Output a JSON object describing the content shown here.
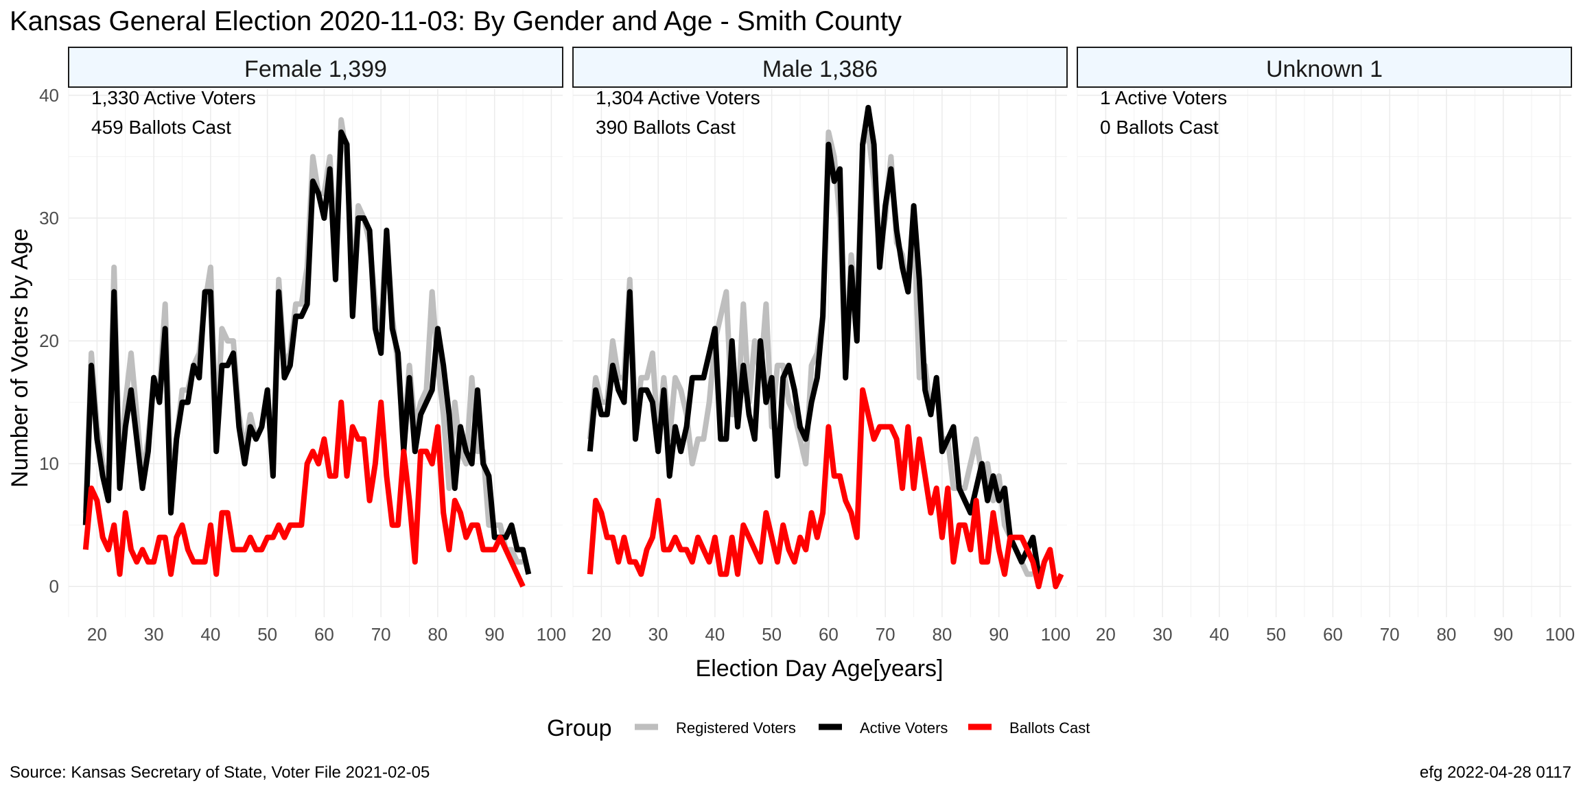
{
  "chart_data": {
    "type": "line",
    "title": "Kansas General Election 2020-11-03:  By Gender and Age - Smith County",
    "xlabel": "Election Day Age[years]",
    "ylabel": "Number of Voters by Age",
    "xlim": [
      15,
      102
    ],
    "ylim": [
      -2.5,
      40.5
    ],
    "x_ticks": [
      "20",
      "30",
      "40",
      "50",
      "60",
      "70",
      "80",
      "90",
      "100"
    ],
    "y_ticks": [
      "0",
      "10",
      "20",
      "30",
      "40"
    ],
    "grid": true,
    "legend": {
      "title": "Group",
      "position": "bottom",
      "entries": [
        {
          "name": "Registered Voters",
          "color": "#bebebe"
        },
        {
          "name": "Active Voters",
          "color": "#000000"
        },
        {
          "name": "Ballots Cast",
          "color": "#ff0000"
        }
      ]
    },
    "caption_left": "Source:  Kansas Secretary of State, Voter File  2021-02-05",
    "caption_right": "efg 2022-04-28 0117",
    "panels": [
      {
        "strip": "Female 1,399",
        "annotations": [
          "1,330 Active Voters",
          "459 Ballots Cast"
        ],
        "series": [
          {
            "name": "Registered Voters",
            "color": "#bebebe",
            "x_start": 18,
            "values": [
              6,
              19,
              13,
              10,
              8,
              26,
              9,
              15,
              19,
              14,
              9,
              12,
              17,
              16,
              23,
              8,
              12,
              16,
              16,
              18,
              19,
              23,
              26,
              12,
              21,
              20,
              20,
              14,
              11,
              14,
              12,
              13,
              16,
              10,
              25,
              18,
              19,
              23,
              23,
              26,
              35,
              32,
              32,
              35,
              27,
              38,
              35,
              24,
              31,
              30,
              28,
              23,
              21,
              29,
              22,
              18,
              12,
              18,
              13,
              15,
              16,
              24,
              18,
              14,
              8,
              15,
              11,
              10,
              17,
              11,
              11,
              5,
              5,
              5,
              3,
              3,
              2,
              2
            ]
          },
          {
            "name": "Active Voters",
            "color": "#000000",
            "x_start": 18,
            "values": [
              5,
              18,
              12,
              9,
              7,
              24,
              8,
              13,
              16,
              12,
              8,
              11,
              17,
              15,
              21,
              6,
              12,
              15,
              15,
              18,
              17,
              24,
              24,
              11,
              18,
              18,
              19,
              13,
              10,
              13,
              12,
              13,
              16,
              9,
              24,
              17,
              18,
              22,
              22,
              23,
              33,
              32,
              30,
              34,
              25,
              37,
              36,
              22,
              30,
              30,
              29,
              21,
              19,
              29,
              21,
              19,
              11,
              17,
              11,
              14,
              15,
              16,
              21,
              18,
              14,
              8,
              13,
              11,
              10,
              16,
              10,
              9,
              4,
              4,
              4,
              5,
              3,
              3,
              1
            ]
          },
          {
            "name": "Ballots Cast",
            "color": "#ff0000",
            "x_start": 18,
            "values": [
              3,
              8,
              7,
              4,
              3,
              5,
              1,
              6,
              3,
              2,
              3,
              2,
              2,
              4,
              4,
              1,
              4,
              5,
              3,
              2,
              2,
              2,
              5,
              1,
              6,
              6,
              3,
              3,
              3,
              4,
              3,
              3,
              4,
              4,
              5,
              4,
              5,
              5,
              5,
              10,
              11,
              10,
              12,
              9,
              9,
              15,
              9,
              13,
              12,
              12,
              7,
              10,
              15,
              9,
              5,
              5,
              11,
              7,
              2,
              11,
              11,
              10,
              13,
              6,
              3,
              7,
              6,
              4,
              5,
              5,
              3,
              3,
              3,
              4,
              3,
              2,
              1,
              0
            ]
          }
        ]
      },
      {
        "strip": "Male 1,386",
        "annotations": [
          "1,304 Active Voters",
          "390 Ballots Cast"
        ],
        "series": [
          {
            "name": "Registered Voters",
            "color": "#bebebe",
            "x_start": 18,
            "values": [
              12,
              17,
              15,
              15,
              20,
              17,
              17,
              25,
              13,
              17,
              17,
              19,
              12,
              17,
              12,
              17,
              16,
              14,
              10,
              12,
              12,
              15,
              20,
              22,
              24,
              14,
              14,
              23,
              15,
              20,
              17,
              23,
              13,
              18,
              18,
              15,
              14,
              12,
              10,
              18,
              19,
              22,
              37,
              35,
              30,
              18,
              27,
              22,
              36,
              37,
              33,
              27,
              30,
              35,
              28,
              27,
              24,
              30,
              17,
              18,
              14,
              17,
              12,
              12,
              8,
              8,
              8,
              10,
              12,
              9,
              10,
              7,
              9,
              5,
              4,
              3,
              2,
              1,
              1
            ]
          },
          {
            "name": "Active Voters",
            "color": "#000000",
            "x_start": 18,
            "values": [
              11,
              16,
              14,
              14,
              18,
              16,
              15,
              24,
              12,
              16,
              16,
              15,
              11,
              16,
              9,
              13,
              11,
              13,
              17,
              17,
              17,
              19,
              21,
              12,
              12,
              20,
              13,
              18,
              14,
              12,
              20,
              15,
              17,
              9,
              17,
              18,
              16,
              13,
              12,
              15,
              17,
              22,
              36,
              33,
              34,
              17,
              26,
              20,
              36,
              39,
              36,
              26,
              31,
              34,
              29,
              26,
              24,
              31,
              25,
              16,
              14,
              17,
              11,
              12,
              13,
              8,
              7,
              6,
              8,
              10,
              7,
              9,
              7,
              8,
              4,
              3,
              2,
              3,
              4,
              1
            ]
          },
          {
            "name": "Ballots Cast",
            "color": "#ff0000",
            "x_start": 18,
            "values": [
              1,
              7,
              6,
              4,
              4,
              2,
              4,
              2,
              2,
              1,
              3,
              4,
              7,
              3,
              3,
              4,
              3,
              3,
              2,
              4,
              3,
              2,
              4,
              1,
              1,
              4,
              1,
              5,
              4,
              3,
              2,
              6,
              4,
              2,
              5,
              3,
              2,
              4,
              3,
              6,
              4,
              6,
              13,
              9,
              9,
              7,
              6,
              4,
              16,
              14,
              12,
              13,
              13,
              13,
              12,
              8,
              13,
              8,
              12,
              9,
              6,
              8,
              4,
              8,
              2,
              5,
              5,
              3,
              7,
              2,
              2,
              6,
              3,
              1,
              4,
              4,
              4,
              3,
              2,
              0,
              2,
              3,
              0,
              1
            ]
          }
        ]
      },
      {
        "strip": "Unknown 1",
        "annotations": [
          "1 Active Voters",
          "0 Ballots Cast"
        ],
        "series": []
      }
    ]
  }
}
